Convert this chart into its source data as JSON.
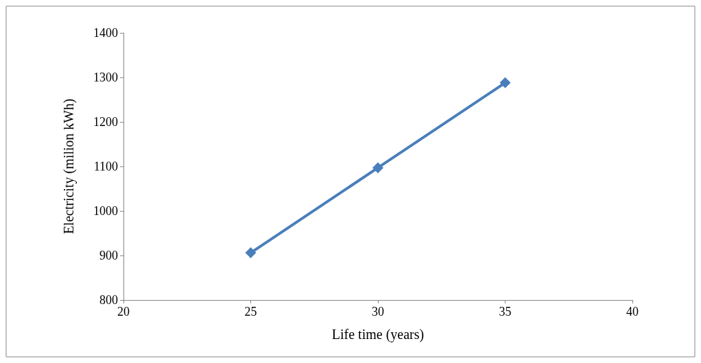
{
  "chart_data": {
    "type": "line",
    "xlabel": "Life time (years)",
    "ylabel": "Electricity (milion kWh)",
    "x": [
      25,
      30,
      35
    ],
    "series": [
      {
        "color": "#4a7ebb",
        "values": [
          906,
          1097,
          1288
        ]
      }
    ],
    "xlim": [
      20,
      40
    ],
    "xticks": [
      20,
      25,
      30,
      35,
      40
    ],
    "ylim": [
      800,
      1400
    ],
    "yticks": [
      800,
      900,
      1000,
      1100,
      1200,
      1300,
      1400
    ],
    "grid": false,
    "marker": "diamond",
    "line_style": "solid"
  }
}
